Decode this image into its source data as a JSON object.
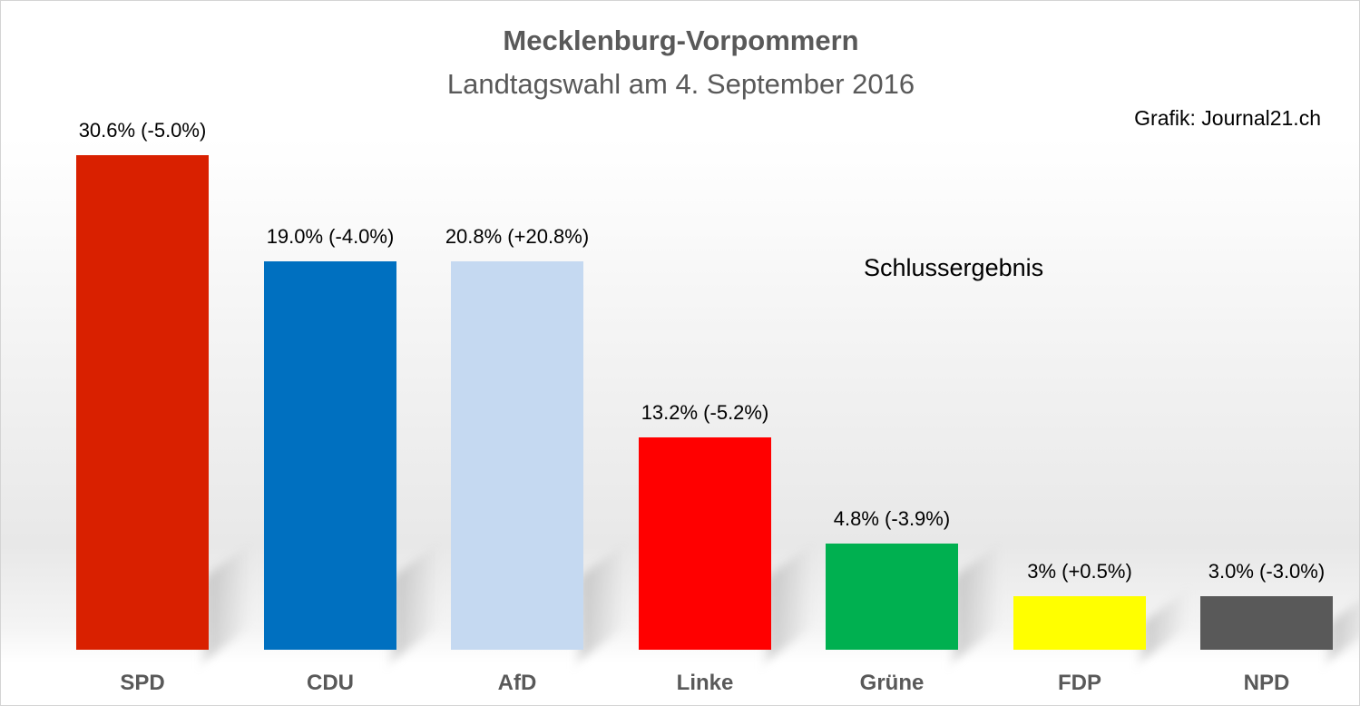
{
  "chart_data": {
    "type": "bar",
    "title": "Mecklenburg-Vorpommern",
    "subtitle": "Landtagswahl am 4. September 2016",
    "source": "Grafik: Journal21.ch",
    "annotation": "Schlussergebnis",
    "xlabel": "",
    "ylabel": "",
    "unit": "%",
    "grid": false,
    "categories": [
      "SPD",
      "CDU",
      "AfD",
      "Linke",
      "Grüne",
      "FDP",
      "NPD"
    ],
    "values": [
      30.6,
      19.0,
      20.8,
      13.2,
      4.8,
      3.0,
      3.0
    ],
    "changes": [
      -5.0,
      -4.0,
      20.8,
      -5.2,
      -3.9,
      0.5,
      -3.0
    ],
    "labels": [
      "30.6% (-5.0%)",
      "19.0% (-4.0%)",
      "20.8% (+20.8%)",
      "13.2% (-5.2%)",
      "4.8% (-3.9%)",
      "3% (+0.5%)",
      "3.0% (-3.0%)"
    ],
    "colors": [
      "#d92000",
      "#0070c0",
      "#c5d9f1",
      "#ff0000",
      "#00b050",
      "#ffff00",
      "#595959"
    ]
  }
}
